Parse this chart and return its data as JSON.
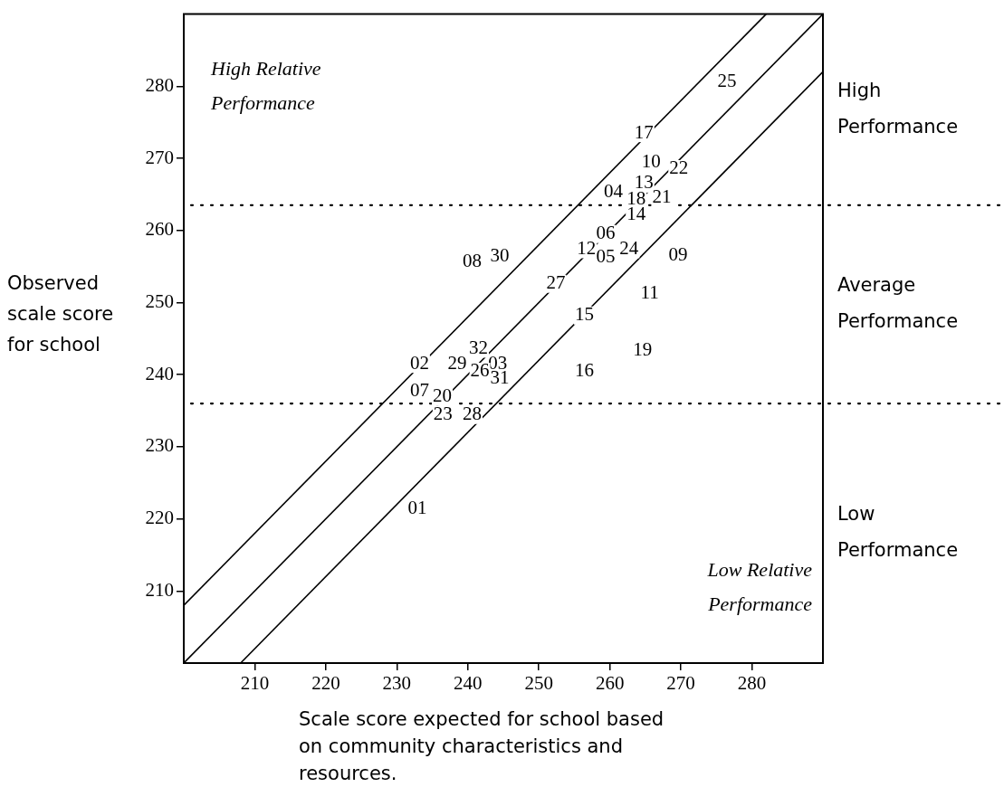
{
  "chart_data": {
    "type": "line",
    "xlabel": "Scale score expected for school based on community characteristics and resources.",
    "ylabel": "Observed scale score for school",
    "xlim": [
      200,
      290
    ],
    "ylim": [
      200,
      290
    ],
    "xticks": [
      210,
      220,
      230,
      240,
      250,
      260,
      270,
      280
    ],
    "yticks": [
      210,
      220,
      230,
      240,
      250,
      260,
      270,
      280
    ],
    "grid": false,
    "marker": "none",
    "ref_lines": [
      {
        "axis": "y",
        "value": 263.5,
        "line_style": "dotted"
      },
      {
        "axis": "y",
        "value": 236,
        "line_style": "dotted"
      }
    ],
    "annotations": [
      "High Relative Performance",
      "Low Relative Performance",
      "High Performance",
      "Average Performance",
      "Low Performance",
      {
        "text": "25",
        "x": 276.5,
        "y": 280.6
      },
      {
        "text": "17",
        "x": 264.8,
        "y": 273.5
      },
      {
        "text": "10",
        "x": 265.8,
        "y": 269.5
      },
      {
        "text": "22",
        "x": 269.7,
        "y": 268.5
      },
      {
        "text": "13",
        "x": 264.8,
        "y": 266.5
      },
      {
        "text": "04",
        "x": 260.5,
        "y": 265.3
      },
      {
        "text": "18",
        "x": 263.7,
        "y": 264.3
      },
      {
        "text": "21",
        "x": 267.3,
        "y": 264.5
      },
      {
        "text": "14",
        "x": 263.7,
        "y": 262.2
      },
      {
        "text": "06",
        "x": 259.4,
        "y": 259.5
      },
      {
        "text": "12",
        "x": 256.7,
        "y": 257.4
      },
      {
        "text": "24",
        "x": 262.7,
        "y": 257.4
      },
      {
        "text": "05",
        "x": 259.4,
        "y": 256.3
      },
      {
        "text": "09",
        "x": 269.6,
        "y": 256.5
      },
      {
        "text": "30",
        "x": 244.5,
        "y": 256.4
      },
      {
        "text": "08",
        "x": 240.6,
        "y": 255.7
      },
      {
        "text": "27",
        "x": 252.4,
        "y": 252.6
      },
      {
        "text": "11",
        "x": 265.6,
        "y": 251.3
      },
      {
        "text": "15",
        "x": 256.4,
        "y": 248.2
      },
      {
        "text": "32",
        "x": 241.5,
        "y": 243.6
      },
      {
        "text": "19",
        "x": 264.6,
        "y": 243.4
      },
      {
        "text": "02",
        "x": 233.2,
        "y": 241.5
      },
      {
        "text": "29",
        "x": 238.5,
        "y": 241.5
      },
      {
        "text": "03",
        "x": 244.2,
        "y": 241.5
      },
      {
        "text": "26",
        "x": 241.7,
        "y": 240.4
      },
      {
        "text": "16",
        "x": 256.4,
        "y": 240.4
      },
      {
        "text": "31",
        "x": 244.5,
        "y": 239.5
      },
      {
        "text": "07",
        "x": 233.2,
        "y": 237.7
      },
      {
        "text": "20",
        "x": 236.4,
        "y": 236.9
      },
      {
        "text": "23",
        "x": 236.5,
        "y": 234.4
      },
      {
        "text": "28",
        "x": 240.6,
        "y": 234.4
      },
      {
        "text": "01",
        "x": 232.9,
        "y": 221.4
      }
    ],
    "series": [
      {
        "color": "#000000",
        "x": [
          200,
          282
        ],
        "values": [
          208,
          290
        ]
      },
      {
        "color": "#000000",
        "x": [
          200,
          290
        ],
        "values": [
          200,
          290
        ]
      },
      {
        "color": "#000000",
        "x": [
          208,
          290
        ],
        "values": [
          200,
          282
        ]
      }
    ]
  }
}
